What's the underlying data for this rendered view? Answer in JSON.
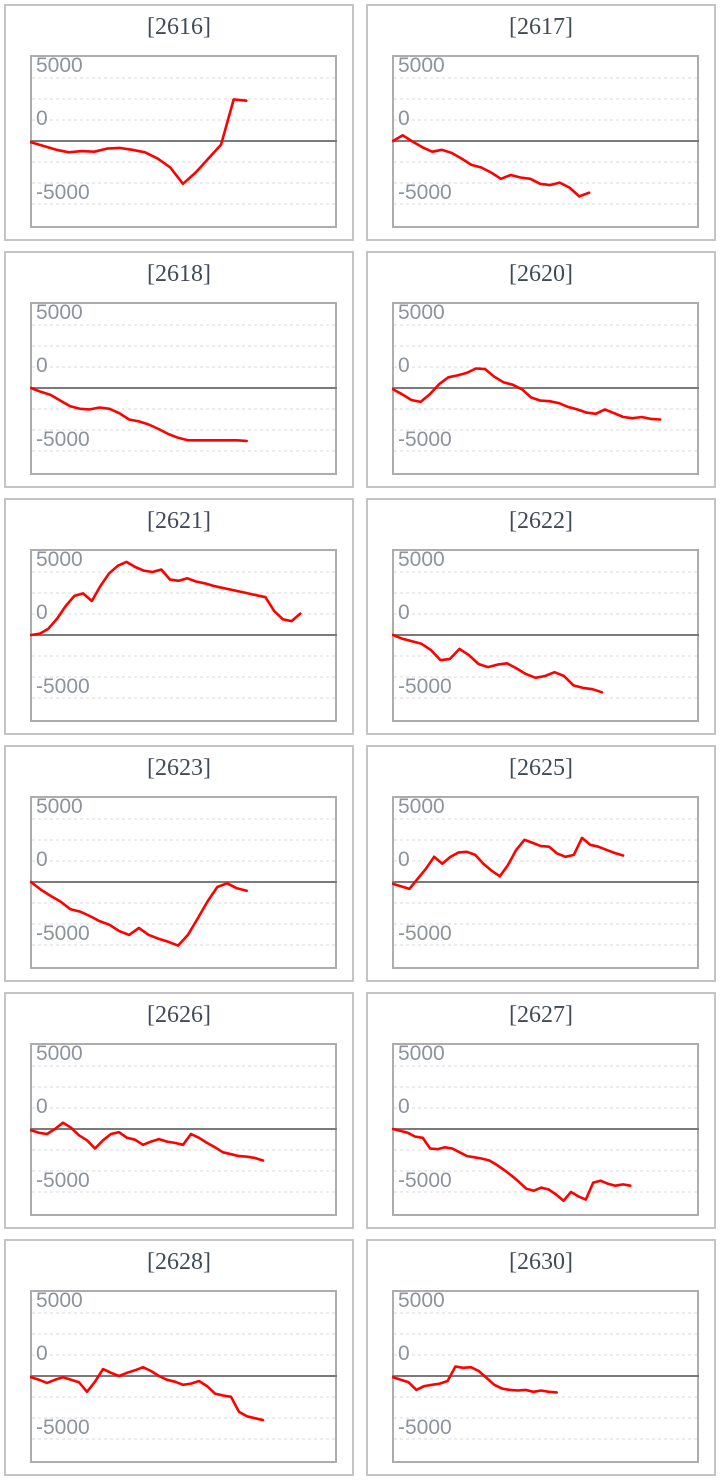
{
  "page": {
    "description": "Grid of 12 small line charts, 2 columns by 6 rows, each titled with a bracketed id"
  },
  "colors": {
    "series_red": "#ff0000",
    "zero_axis": "#7a7a7a",
    "gridline": "#d9d9d9",
    "plot_border": "#adadad",
    "card_border": "#c4c4c4",
    "title_text": "#414b57",
    "axis_label_text": "#8d939b",
    "background": "#ffffff"
  },
  "axis_common": {
    "tick_labels": [
      "5000",
      "0",
      "-5000"
    ],
    "tick_values": [
      5000,
      0,
      -5000
    ],
    "gridline_values": [
      5000,
      3333,
      1667,
      0,
      -1667,
      -3333,
      -5000
    ],
    "ylim": [
      -6800,
      6800
    ],
    "grid": "dashed",
    "zero_line": "solid",
    "legend": "none",
    "x_tick_labels": "none"
  },
  "chart_data": [
    {
      "type": "line",
      "title": "[2616]",
      "x_slots": 25,
      "values": [
        -100,
        -400,
        -700,
        -900,
        -800,
        -850,
        -600,
        -550,
        -700,
        -900,
        -1400,
        -2100,
        -3400,
        -2500,
        -1400,
        -300,
        3300,
        3200
      ]
    },
    {
      "type": "line",
      "title": "[2617]",
      "x_slots": 32,
      "values": [
        0,
        450,
        -50,
        -500,
        -850,
        -700,
        -950,
        -1400,
        -1900,
        -2100,
        -2500,
        -3000,
        -2700,
        -2900,
        -3000,
        -3400,
        -3500,
        -3300,
        -3700,
        -4400,
        -4100
      ]
    },
    {
      "type": "line",
      "title": "[2618]",
      "x_slots": 32,
      "values": [
        0,
        -300,
        -550,
        -1000,
        -1450,
        -1650,
        -1700,
        -1550,
        -1650,
        -2000,
        -2500,
        -2650,
        -2900,
        -3250,
        -3650,
        -3950,
        -4150,
        -4150,
        -4150,
        -4150,
        -4150,
        -4150,
        -4200
      ]
    },
    {
      "type": "line",
      "title": "[2620]",
      "x_slots": 34,
      "values": [
        -100,
        -500,
        -950,
        -1100,
        -500,
        300,
        850,
        1000,
        1200,
        1550,
        1500,
        900,
        450,
        250,
        -100,
        -750,
        -1000,
        -1050,
        -1200,
        -1500,
        -1700,
        -1950,
        -2050,
        -1700,
        -2000,
        -2300,
        -2400,
        -2300,
        -2450,
        -2500
      ]
    },
    {
      "type": "line",
      "title": "[2621]",
      "x_slots": 36,
      "values": [
        0,
        100,
        500,
        1300,
        2300,
        3100,
        3300,
        2700,
        3900,
        4900,
        5500,
        5800,
        5400,
        5100,
        5000,
        5200,
        4400,
        4300,
        4500,
        4250,
        4100,
        3900,
        3750,
        3600,
        3450,
        3300,
        3150,
        3000,
        1900,
        1250,
        1100,
        1700
      ]
    },
    {
      "type": "line",
      "title": "[2622]",
      "x_slots": 33,
      "values": [
        0,
        -300,
        -500,
        -700,
        -1200,
        -2000,
        -1900,
        -1100,
        -1600,
        -2300,
        -2550,
        -2350,
        -2250,
        -2650,
        -3100,
        -3400,
        -3250,
        -2950,
        -3250,
        -4000,
        -4200,
        -4300,
        -4550
      ]
    },
    {
      "type": "line",
      "title": "[2623]",
      "x_slots": 32,
      "values": [
        0,
        -600,
        -1100,
        -1550,
        -2150,
        -2350,
        -2700,
        -3100,
        -3400,
        -3900,
        -4200,
        -3650,
        -4200,
        -4500,
        -4750,
        -5050,
        -4200,
        -2900,
        -1550,
        -400,
        -100,
        -500,
        -700
      ]
    },
    {
      "type": "line",
      "title": "[2625]",
      "x_slots": 38,
      "values": [
        -150,
        -350,
        -550,
        250,
        1050,
        2000,
        1450,
        2000,
        2350,
        2400,
        2150,
        1450,
        900,
        450,
        1350,
        2550,
        3350,
        3100,
        2850,
        2800,
        2250,
        2000,
        2150,
        3500,
        2950,
        2800,
        2550,
        2300,
        2100
      ]
    },
    {
      "type": "line",
      "title": "[2626]",
      "x_slots": 39,
      "values": [
        -100,
        -300,
        -400,
        0,
        500,
        100,
        -500,
        -900,
        -1550,
        -900,
        -400,
        -250,
        -700,
        -850,
        -1250,
        -1000,
        -800,
        -1000,
        -1100,
        -1250,
        -400,
        -700,
        -1100,
        -1450,
        -1850,
        -2000,
        -2150,
        -2200,
        -2300,
        -2500
      ]
    },
    {
      "type": "line",
      "title": "[2627]",
      "x_slots": 42,
      "values": [
        0,
        -150,
        -300,
        -600,
        -700,
        -1550,
        -1600,
        -1450,
        -1550,
        -1850,
        -2150,
        -2250,
        -2350,
        -2500,
        -2850,
        -3250,
        -3700,
        -4200,
        -4750,
        -4900,
        -4650,
        -4800,
        -5200,
        -5700,
        -5000,
        -5350,
        -5600,
        -4250,
        -4100,
        -4350,
        -4500,
        -4400,
        -4500
      ]
    },
    {
      "type": "line",
      "title": "[2628]",
      "x_slots": 39,
      "values": [
        -100,
        -300,
        -550,
        -300,
        -100,
        -300,
        -500,
        -1250,
        -450,
        550,
        250,
        0,
        250,
        450,
        700,
        400,
        0,
        -300,
        -450,
        -700,
        -600,
        -400,
        -800,
        -1400,
        -1550,
        -1650,
        -2850,
        -3200,
        -3350,
        -3500
      ]
    },
    {
      "type": "line",
      "title": "[2630]",
      "x_slots": 40,
      "values": [
        -100,
        -300,
        -500,
        -1100,
        -800,
        -700,
        -600,
        -400,
        750,
        650,
        700,
        400,
        -150,
        -700,
        -1000,
        -1100,
        -1150,
        -1100,
        -1250,
        -1150,
        -1250,
        -1300
      ]
    }
  ]
}
